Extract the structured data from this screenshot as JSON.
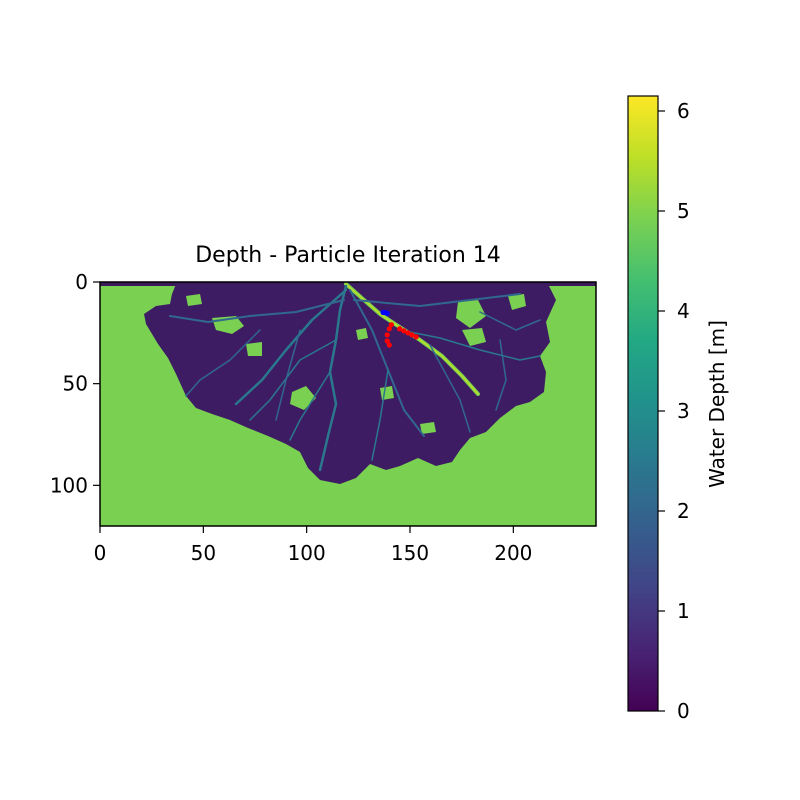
{
  "chart_data": {
    "type": "heatmap",
    "title": "Depth - Particle Iteration 14",
    "xlabel": "",
    "ylabel": "",
    "xlim": [
      0,
      240
    ],
    "ylim": [
      120,
      0
    ],
    "x_ticks": [
      0,
      50,
      100,
      150,
      200
    ],
    "y_ticks": [
      0,
      50,
      100
    ],
    "colormap": "viridis",
    "colorbar": {
      "label": "Water Depth [m]",
      "range": [
        0,
        6.15
      ],
      "ticks": [
        0,
        1,
        2,
        3,
        4,
        5,
        6
      ]
    },
    "background_value_m": 5.0,
    "particles": {
      "blue": {
        "color": "#0000ff",
        "points": [
          [
            137,
            15
          ],
          [
            138,
            15
          ],
          [
            139,
            15.5
          ]
        ]
      },
      "red": {
        "color": "#ff0000",
        "points": [
          [
            141,
            21
          ],
          [
            140,
            23
          ],
          [
            139,
            26
          ],
          [
            139,
            29
          ],
          [
            140,
            31
          ],
          [
            145,
            23
          ],
          [
            147,
            24
          ],
          [
            149,
            25
          ],
          [
            151,
            26
          ],
          [
            153,
            27
          ]
        ]
      }
    }
  }
}
